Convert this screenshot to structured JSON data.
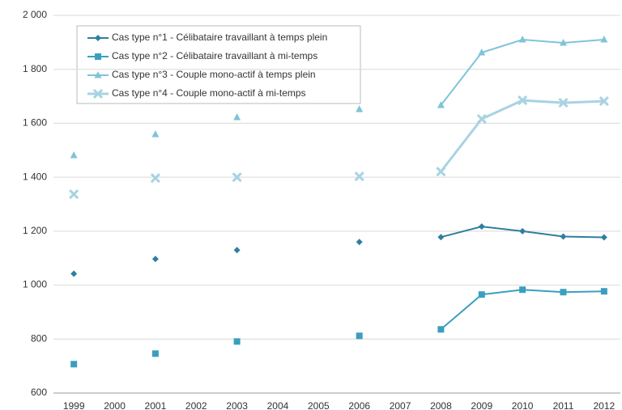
{
  "chart_data": {
    "type": "line",
    "x": [
      1999,
      2000,
      2001,
      2002,
      2003,
      2004,
      2005,
      2006,
      2007,
      2008,
      2009,
      2010,
      2011,
      2012
    ],
    "xlim": [
      1998.5,
      2012.4
    ],
    "ylim": [
      600,
      2000
    ],
    "yticks": [
      600,
      800,
      {
        "value": 1000,
        "label": "1 000"
      },
      {
        "value": 1200,
        "label": "1 200"
      },
      {
        "value": 1400,
        "label": "1 400"
      },
      {
        "value": 1600,
        "label": "1 600"
      },
      {
        "value": 1800,
        "label": "1 800"
      },
      {
        "value": 2000,
        "label": "2 000"
      }
    ],
    "grid": true,
    "series": [
      {
        "name": "Cas type n°1 - Célibataire travaillant à temps plein",
        "color": "#2f7f9e",
        "marker": "diamond",
        "values": [
          1042,
          null,
          1097,
          null,
          1130,
          null,
          null,
          1160,
          null,
          1178,
          1217,
          1200,
          1180,
          1177
        ]
      },
      {
        "name": "Cas type n°2 - Célibataire travaillant à mi-temps",
        "color": "#3a9fbf",
        "marker": "square",
        "values": [
          707,
          null,
          746,
          null,
          791,
          null,
          null,
          812,
          null,
          836,
          965,
          983,
          974,
          977
        ]
      },
      {
        "name": "Cas type n°3 - Couple mono-actif à temps plein",
        "color": "#7fc4d8",
        "marker": "triangle",
        "values": [
          1481,
          null,
          1559,
          null,
          1622,
          null,
          null,
          1652,
          null,
          1667,
          1862,
          1910,
          1898,
          1910
        ]
      },
      {
        "name": "Cas type n°4 - Couple mono-actif à mi-temps",
        "color": "#a8d3e2",
        "marker": "cross",
        "values": [
          1337,
          null,
          1397,
          null,
          1400,
          null,
          null,
          1403,
          null,
          1421,
          1616,
          1685,
          1676,
          1682
        ]
      }
    ]
  }
}
